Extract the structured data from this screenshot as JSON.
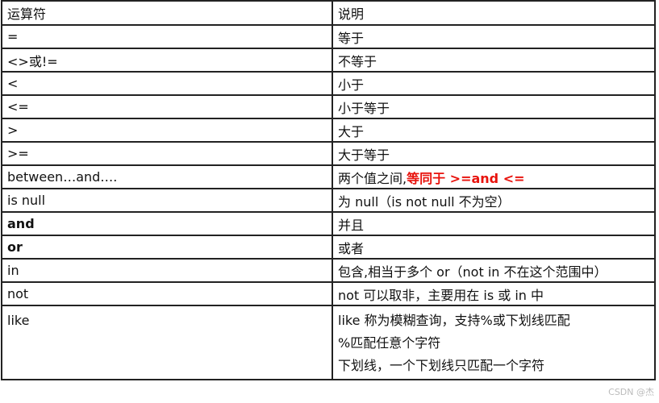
{
  "header": {
    "operator": "运算符",
    "description": "说明"
  },
  "rows": [
    {
      "op": "=",
      "desc": "等于"
    },
    {
      "op": "<>或!=",
      "desc": "不等于"
    },
    {
      "op": "<",
      "desc": "小于"
    },
    {
      "op": "<=",
      "desc": "小于等于"
    },
    {
      "op": ">",
      "desc": "大于"
    },
    {
      "op": ">=",
      "desc": "大于等于"
    },
    {
      "op": "between…and….",
      "desc": "两个值之间,",
      "desc_highlight": "等同于 >=and <="
    },
    {
      "op": "is null",
      "desc": "为 null（is not null 不为空）"
    },
    {
      "op": "and",
      "desc": "并且"
    },
    {
      "op": "or",
      "desc": "或者"
    },
    {
      "op": "in",
      "desc": "包含,相当于多个 or（not in 不在这个范围中）"
    },
    {
      "op": "not",
      "desc": "not 可以取非，主要用在 is 或 in 中"
    },
    {
      "op": "like",
      "desc_lines": [
        "like 称为模糊查询，支持%或下划线匹配",
        "%匹配任意个字符",
        "下划线，一个下划线只匹配一个字符"
      ]
    }
  ],
  "highlight_color": "#e8120c",
  "watermark": "CSDN @杰"
}
